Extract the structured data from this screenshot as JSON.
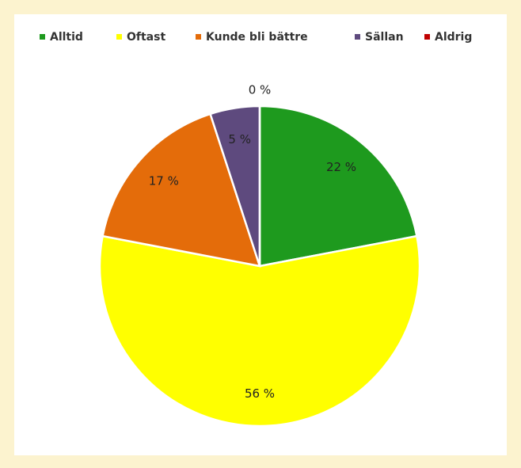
{
  "chart_data": {
    "type": "pie",
    "categories": [
      "Alltid",
      "Oftast",
      "Kunde bli bättre",
      "Sällan",
      "Aldrig"
    ],
    "values": [
      22,
      56,
      17,
      5,
      0
    ],
    "value_labels": [
      "22 %",
      "56 %",
      "17 %",
      "5 %",
      "0 %"
    ],
    "colors": [
      "#1e9a1e",
      "#ffff00",
      "#e46c0a",
      "#5e4a7e",
      "#c00000"
    ]
  }
}
